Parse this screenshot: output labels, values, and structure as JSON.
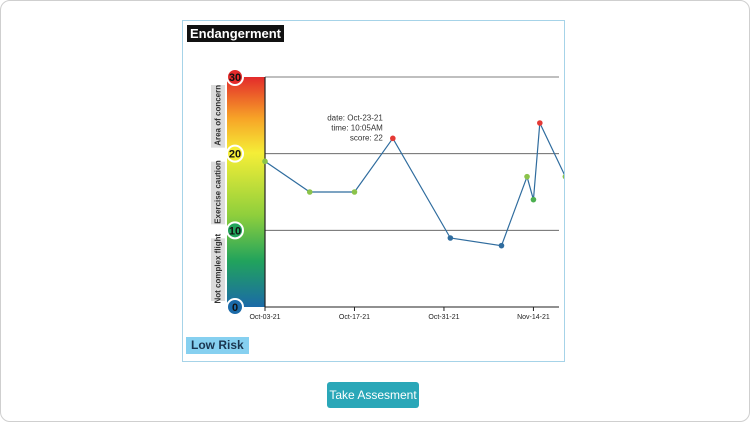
{
  "title": "Endangerment",
  "risk_badge": "Low Risk",
  "action_button": "Take Assesment",
  "zones": [
    {
      "label": "Area of concern",
      "from": 20,
      "to": 30
    },
    {
      "label": "Exercise caution",
      "from": 10,
      "to": 20
    },
    {
      "label": "Not complex flight",
      "from": 0,
      "to": 10
    }
  ],
  "tooltip": {
    "lines": [
      "date: Oct-23-21",
      "time: 10:05AM",
      "score: 22"
    ]
  },
  "colors": {
    "line": "#2f6c9e",
    "badge": "#86d0f0",
    "button": "#2aa7b8",
    "title_bg": "#111111"
  },
  "chart_data": {
    "type": "line",
    "title": "Endangerment",
    "xlabel": "",
    "ylabel": "",
    "ylim": [
      0,
      30
    ],
    "xlim": [
      "2021-10-03",
      "2021-11-18"
    ],
    "yticks": [
      0,
      10,
      20,
      30
    ],
    "xticks": [
      "Oct-03-21",
      "Oct-17-21",
      "Oct-31-21",
      "Nov-14-21"
    ],
    "grid": true,
    "series": [
      {
        "points": [
          {
            "x": "2021-10-03",
            "y": 19,
            "color": "#8bc34a"
          },
          {
            "x": "2021-10-10",
            "y": 15,
            "color": "#8bc34a"
          },
          {
            "x": "2021-10-17",
            "y": 15,
            "color": "#8bc34a"
          },
          {
            "x": "2021-10-23",
            "y": 22,
            "color": "#e53935"
          },
          {
            "x": "2021-11-01",
            "y": 9,
            "color": "#2f6c9e"
          },
          {
            "x": "2021-11-09",
            "y": 8,
            "color": "#2f6c9e"
          },
          {
            "x": "2021-11-13",
            "y": 17,
            "color": "#8bc34a"
          },
          {
            "x": "2021-11-14",
            "y": 14,
            "color": "#4caf50"
          },
          {
            "x": "2021-11-15",
            "y": 24,
            "color": "#e53935"
          },
          {
            "x": "2021-11-19",
            "y": 17,
            "color": "#8bc34a"
          }
        ]
      }
    ]
  }
}
